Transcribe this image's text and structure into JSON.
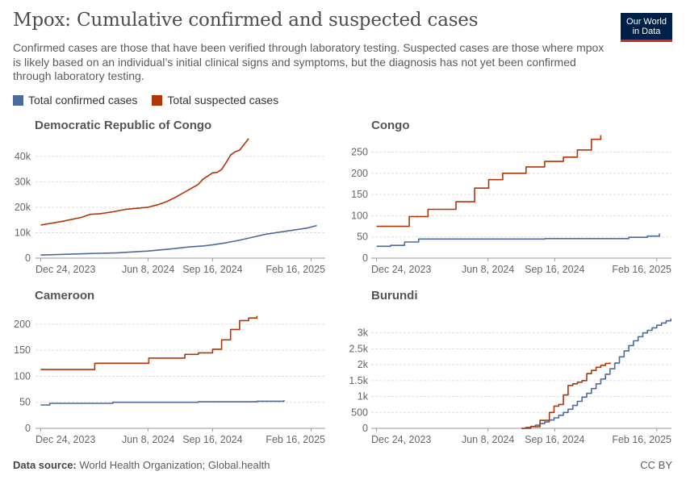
{
  "header": {
    "title": "Mpox: Cumulative confirmed and suspected cases",
    "subtitle": "Confirmed cases are those that have been verified through laboratory testing. Suspected cases are those where mpox is likely based on an individual’s initial clinical signs and symptoms, but the diagnosis has not yet been confirmed through laboratory testing.",
    "logo_line1": "Our World",
    "logo_line2": "in Data"
  },
  "legend": {
    "confirmed_label": "Total confirmed cases",
    "suspected_label": "Total suspected cases"
  },
  "colors": {
    "confirmed": "#4c6a9c",
    "suspected": "#b13507",
    "grid": "#dddddd",
    "axis": "#666666"
  },
  "footer": {
    "source_label": "Data source:",
    "source_text": "World Health Organization; Global.health",
    "license": "CC BY"
  },
  "chart_data": [
    {
      "type": "line",
      "title": "Democratic Republic of Congo",
      "x_ticks": [
        "Dec 24, 2023",
        "Jun 8, 2024",
        "Sep 16, 2024",
        "Feb 16, 2025"
      ],
      "y_ticks": [
        "0",
        "10k",
        "20k",
        "30k",
        "40k"
      ],
      "ylim": [
        0,
        45000
      ],
      "step": false,
      "series": [
        {
          "name": "Total confirmed cases",
          "color": "confirmed",
          "x": [
            "2023-12-24",
            "2024-01-28",
            "2024-03-10",
            "2024-04-21",
            "2024-06-08",
            "2024-07-14",
            "2024-08-11",
            "2024-09-01",
            "2024-09-16",
            "2024-10-06",
            "2024-10-27",
            "2024-11-17",
            "2024-12-08",
            "2024-12-29",
            "2025-01-19",
            "2025-02-09",
            "2025-02-25"
          ],
          "y": [
            1200,
            1500,
            1800,
            2100,
            2800,
            3600,
            4400,
            4800,
            5200,
            6000,
            7000,
            8200,
            9400,
            10200,
            11000,
            11800,
            12800
          ]
        },
        {
          "name": "Total suspected cases",
          "color": "suspected",
          "x": [
            "2023-12-24",
            "2024-01-28",
            "2024-02-25",
            "2024-03-10",
            "2024-03-24",
            "2024-04-14",
            "2024-05-05",
            "2024-05-26",
            "2024-06-08",
            "2024-06-23",
            "2024-07-07",
            "2024-07-21",
            "2024-07-28",
            "2024-08-11",
            "2024-08-25",
            "2024-09-01",
            "2024-09-16",
            "2024-09-23",
            "2024-09-30",
            "2024-10-07",
            "2024-10-14",
            "2024-10-21",
            "2024-10-28",
            "2024-11-11"
          ],
          "y": [
            13000,
            14500,
            16000,
            17200,
            17400,
            18200,
            19200,
            19700,
            20000,
            21000,
            22200,
            24000,
            25000,
            27000,
            29000,
            31000,
            33500,
            33700,
            34800,
            37500,
            40500,
            41800,
            42400,
            47000
          ]
        }
      ]
    },
    {
      "type": "line",
      "title": "Congo",
      "x_ticks": [
        "Dec 24, 2023",
        "Jun 8, 2024",
        "Sep 16, 2024",
        "Feb 16, 2025"
      ],
      "y_ticks": [
        "0",
        "50",
        "100",
        "150",
        "200",
        "250"
      ],
      "ylim": [
        0,
        270
      ],
      "step": true,
      "series": [
        {
          "name": "Total confirmed cases",
          "color": "confirmed",
          "x": [
            "2023-12-24",
            "2024-01-14",
            "2024-02-04",
            "2024-02-25",
            "2024-09-01",
            "2025-01-05",
            "2025-02-02",
            "2025-02-20"
          ],
          "y": [
            28,
            30,
            38,
            45,
            46,
            49,
            52,
            58
          ]
        },
        {
          "name": "Total suspected cases",
          "color": "suspected",
          "x": [
            "2023-12-24",
            "2024-02-11",
            "2024-03-10",
            "2024-04-21",
            "2024-05-19",
            "2024-06-09",
            "2024-06-30",
            "2024-08-04",
            "2024-09-01",
            "2024-09-29",
            "2024-10-20",
            "2024-11-10",
            "2024-11-24"
          ],
          "y": [
            75,
            98,
            115,
            133,
            165,
            185,
            200,
            215,
            228,
            238,
            255,
            280,
            290
          ]
        }
      ]
    },
    {
      "type": "line",
      "title": "Cameroon",
      "x_ticks": [
        "Dec 24, 2023",
        "Jun 8, 2024",
        "Sep 16, 2024",
        "Feb 16, 2025"
      ],
      "y_ticks": [
        "0",
        "50",
        "100",
        "150",
        "200"
      ],
      "ylim": [
        0,
        220
      ],
      "step": true,
      "series": [
        {
          "name": "Total confirmed cases",
          "color": "confirmed",
          "x": [
            "2023-12-24",
            "2024-01-07",
            "2024-04-14",
            "2024-08-25",
            "2024-11-24",
            "2025-01-05"
          ],
          "y": [
            45,
            48,
            50,
            51,
            52,
            54
          ]
        },
        {
          "name": "Total suspected cases",
          "color": "suspected",
          "x": [
            "2023-12-24",
            "2024-03-17",
            "2024-06-09",
            "2024-08-04",
            "2024-08-25",
            "2024-09-16",
            "2024-09-30",
            "2024-10-14",
            "2024-10-28",
            "2024-11-11",
            "2024-11-24"
          ],
          "y": [
            113,
            125,
            135,
            142,
            145,
            152,
            170,
            190,
            207,
            212,
            216
          ]
        }
      ]
    },
    {
      "type": "line",
      "title": "Burundi",
      "x_ticks": [
        "Dec 24, 2023",
        "Jun 8, 2024",
        "Sep 16, 2024",
        "Feb 16, 2025"
      ],
      "y_ticks": [
        "0",
        "500",
        "1k",
        "1.5k",
        "2k",
        "2.5k",
        "3k"
      ],
      "ylim": [
        0,
        3600
      ],
      "step": true,
      "series": [
        {
          "name": "Total confirmed cases",
          "color": "confirmed",
          "x": [
            "2024-07-28",
            "2024-08-04",
            "2024-08-11",
            "2024-08-18",
            "2024-08-25",
            "2024-09-01",
            "2024-09-08",
            "2024-09-15",
            "2024-09-22",
            "2024-09-29",
            "2024-10-06",
            "2024-10-13",
            "2024-10-20",
            "2024-10-27",
            "2024-11-03",
            "2024-11-10",
            "2024-11-17",
            "2024-11-24",
            "2024-12-01",
            "2024-12-08",
            "2024-12-15",
            "2024-12-22",
            "2024-12-29",
            "2025-01-05",
            "2025-01-12",
            "2025-01-19",
            "2025-01-26",
            "2025-02-02",
            "2025-02-09",
            "2025-02-16",
            "2025-02-23",
            "2025-03-02",
            "2025-03-09"
          ],
          "y": [
            0,
            30,
            60,
            100,
            150,
            200,
            260,
            330,
            410,
            500,
            600,
            720,
            850,
            980,
            1100,
            1250,
            1400,
            1550,
            1700,
            1870,
            2050,
            2250,
            2430,
            2600,
            2750,
            2880,
            3000,
            3080,
            3160,
            3240,
            3310,
            3380,
            3450
          ]
        },
        {
          "name": "Total suspected cases",
          "color": "suspected",
          "x": [
            "2024-07-28",
            "2024-08-11",
            "2024-08-25",
            "2024-09-08",
            "2024-09-15",
            "2024-09-22",
            "2024-09-29",
            "2024-10-06",
            "2024-10-13",
            "2024-10-20",
            "2024-10-27",
            "2024-11-03",
            "2024-11-10",
            "2024-11-17",
            "2024-11-24",
            "2024-12-01",
            "2024-12-08"
          ],
          "y": [
            0,
            50,
            250,
            500,
            700,
            750,
            1050,
            1350,
            1400,
            1450,
            1500,
            1720,
            1820,
            1920,
            1980,
            2040,
            2070
          ]
        }
      ]
    }
  ]
}
